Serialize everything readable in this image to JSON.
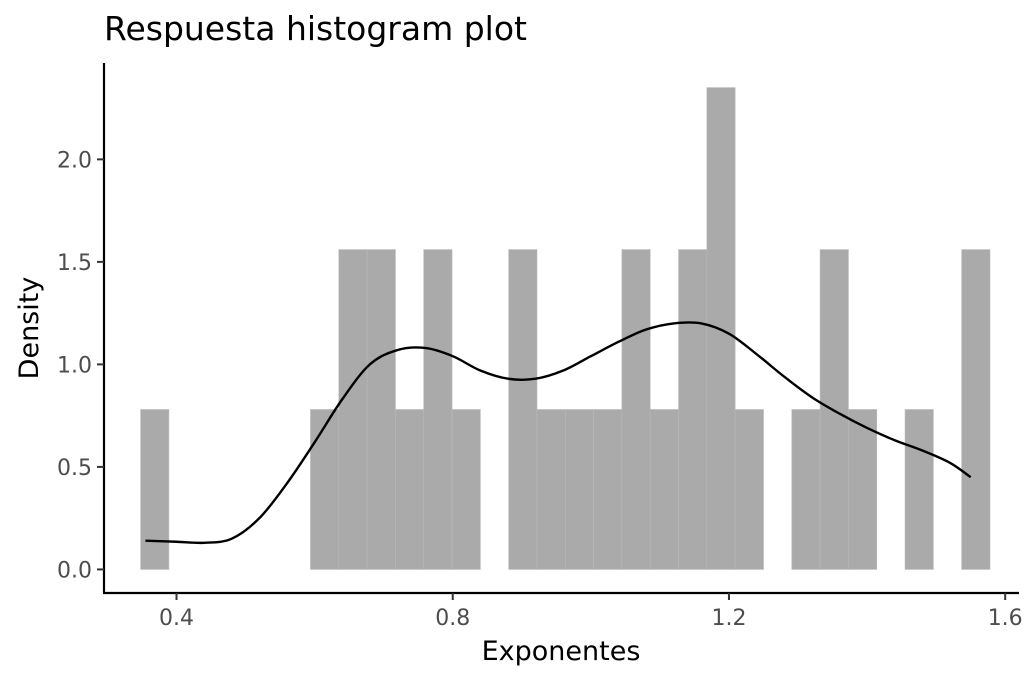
{
  "chart_data": {
    "type": "histogram",
    "title": "Respuesta histogram plot",
    "xlabel": "Exponentes",
    "ylabel": "Density",
    "xlim": [
      0.295,
      1.62
    ],
    "ylim": [
      -0.115,
      2.47
    ],
    "x_ticks": [
      0.4,
      0.8,
      1.2,
      1.6
    ],
    "x_tick_labels": [
      "0.4",
      "0.8",
      "1.2",
      "1.6"
    ],
    "y_ticks": [
      0.0,
      0.5,
      1.0,
      1.5,
      2.0
    ],
    "y_tick_labels": [
      "0.0",
      "0.5",
      "1.0",
      "1.5",
      "2.0"
    ],
    "bin_width": 0.041,
    "bins": [
      {
        "x0": 0.348,
        "density": 0.78
      },
      {
        "x0": 0.389,
        "density": 0
      },
      {
        "x0": 0.43,
        "density": 0
      },
      {
        "x0": 0.471,
        "density": 0
      },
      {
        "x0": 0.512,
        "density": 0
      },
      {
        "x0": 0.553,
        "density": 0
      },
      {
        "x0": 0.594,
        "density": 0.78
      },
      {
        "x0": 0.635,
        "density": 1.56
      },
      {
        "x0": 0.676,
        "density": 1.56
      },
      {
        "x0": 0.717,
        "density": 0.78
      },
      {
        "x0": 0.758,
        "density": 1.56
      },
      {
        "x0": 0.799,
        "density": 0.78
      },
      {
        "x0": 0.84,
        "density": 0
      },
      {
        "x0": 0.881,
        "density": 1.56
      },
      {
        "x0": 0.922,
        "density": 0.78
      },
      {
        "x0": 0.963,
        "density": 0.78
      },
      {
        "x0": 1.004,
        "density": 0.78
      },
      {
        "x0": 1.045,
        "density": 1.56
      },
      {
        "x0": 1.086,
        "density": 0.78
      },
      {
        "x0": 1.127,
        "density": 1.56
      },
      {
        "x0": 1.168,
        "density": 2.35
      },
      {
        "x0": 1.209,
        "density": 0.78
      },
      {
        "x0": 1.25,
        "density": 0
      },
      {
        "x0": 1.291,
        "density": 0.78
      },
      {
        "x0": 1.332,
        "density": 1.56
      },
      {
        "x0": 1.373,
        "density": 0.78
      },
      {
        "x0": 1.414,
        "density": 0
      },
      {
        "x0": 1.455,
        "density": 0.78
      },
      {
        "x0": 1.496,
        "density": 0
      },
      {
        "x0": 1.537,
        "density": 1.56
      }
    ],
    "density_curve": [
      {
        "x": 0.355,
        "y": 0.14
      },
      {
        "x": 0.4,
        "y": 0.135
      },
      {
        "x": 0.44,
        "y": 0.13
      },
      {
        "x": 0.48,
        "y": 0.15
      },
      {
        "x": 0.52,
        "y": 0.25
      },
      {
        "x": 0.56,
        "y": 0.42
      },
      {
        "x": 0.6,
        "y": 0.62
      },
      {
        "x": 0.64,
        "y": 0.83
      },
      {
        "x": 0.68,
        "y": 1.0
      },
      {
        "x": 0.72,
        "y": 1.07
      },
      {
        "x": 0.76,
        "y": 1.08
      },
      {
        "x": 0.8,
        "y": 1.04
      },
      {
        "x": 0.84,
        "y": 0.97
      },
      {
        "x": 0.88,
        "y": 0.93
      },
      {
        "x": 0.92,
        "y": 0.93
      },
      {
        "x": 0.96,
        "y": 0.97
      },
      {
        "x": 1.0,
        "y": 1.04
      },
      {
        "x": 1.04,
        "y": 1.11
      },
      {
        "x": 1.08,
        "y": 1.17
      },
      {
        "x": 1.12,
        "y": 1.2
      },
      {
        "x": 1.16,
        "y": 1.2
      },
      {
        "x": 1.2,
        "y": 1.15
      },
      {
        "x": 1.24,
        "y": 1.05
      },
      {
        "x": 1.28,
        "y": 0.94
      },
      {
        "x": 1.32,
        "y": 0.84
      },
      {
        "x": 1.36,
        "y": 0.76
      },
      {
        "x": 1.4,
        "y": 0.69
      },
      {
        "x": 1.44,
        "y": 0.63
      },
      {
        "x": 1.48,
        "y": 0.58
      },
      {
        "x": 1.52,
        "y": 0.52
      },
      {
        "x": 1.55,
        "y": 0.45
      }
    ],
    "colors": {
      "bar": "#aaaaaa",
      "curve": "#000000"
    },
    "grid": false,
    "legend": "none"
  }
}
